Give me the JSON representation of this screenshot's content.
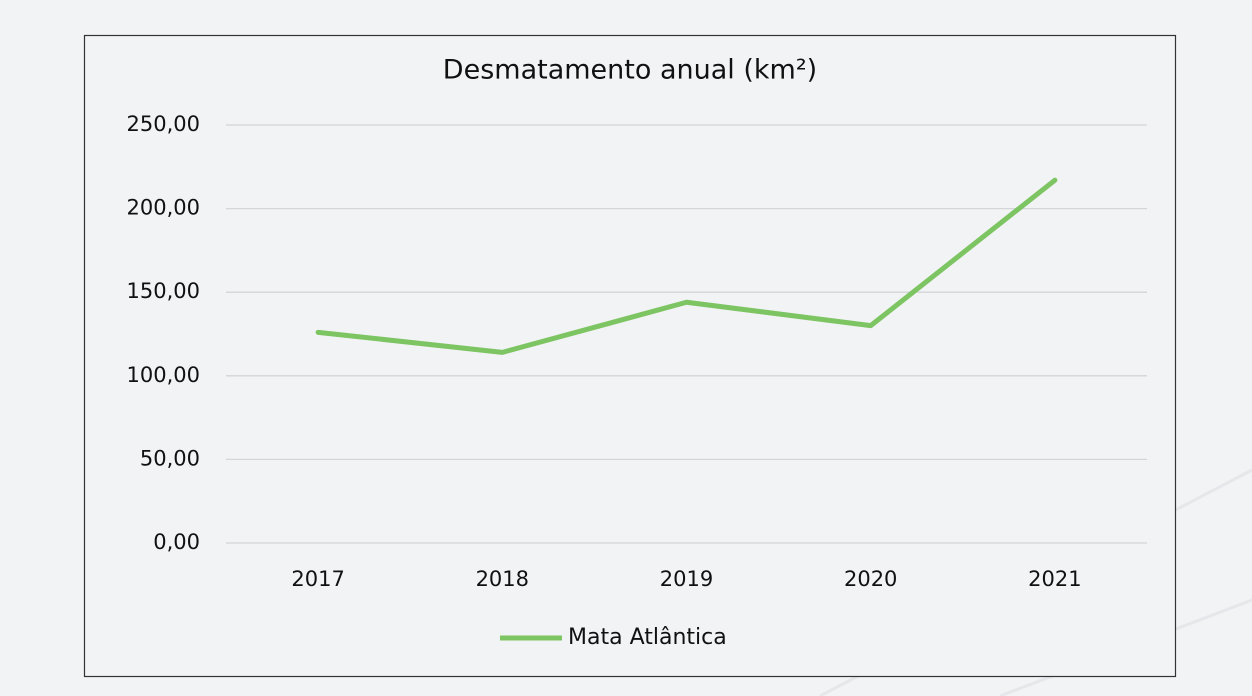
{
  "chart_data": {
    "type": "line",
    "title": "Desmatamento anual (km²)",
    "categories": [
      "2017",
      "2018",
      "2019",
      "2020",
      "2021"
    ],
    "series": [
      {
        "name": "Mata Atlântica",
        "color": "#7dc462",
        "values": [
          126,
          114,
          144,
          130,
          217
        ]
      }
    ],
    "ylim": [
      0,
      250
    ],
    "yticks": [
      {
        "value": 0,
        "label": "0,00"
      },
      {
        "value": 50,
        "label": "50,00"
      },
      {
        "value": 100,
        "label": "100,00"
      },
      {
        "value": 150,
        "label": "150,00"
      },
      {
        "value": 200,
        "label": "200,00"
      },
      {
        "value": 250,
        "label": "250,00"
      }
    ],
    "grid": true,
    "legend": "bottom"
  }
}
